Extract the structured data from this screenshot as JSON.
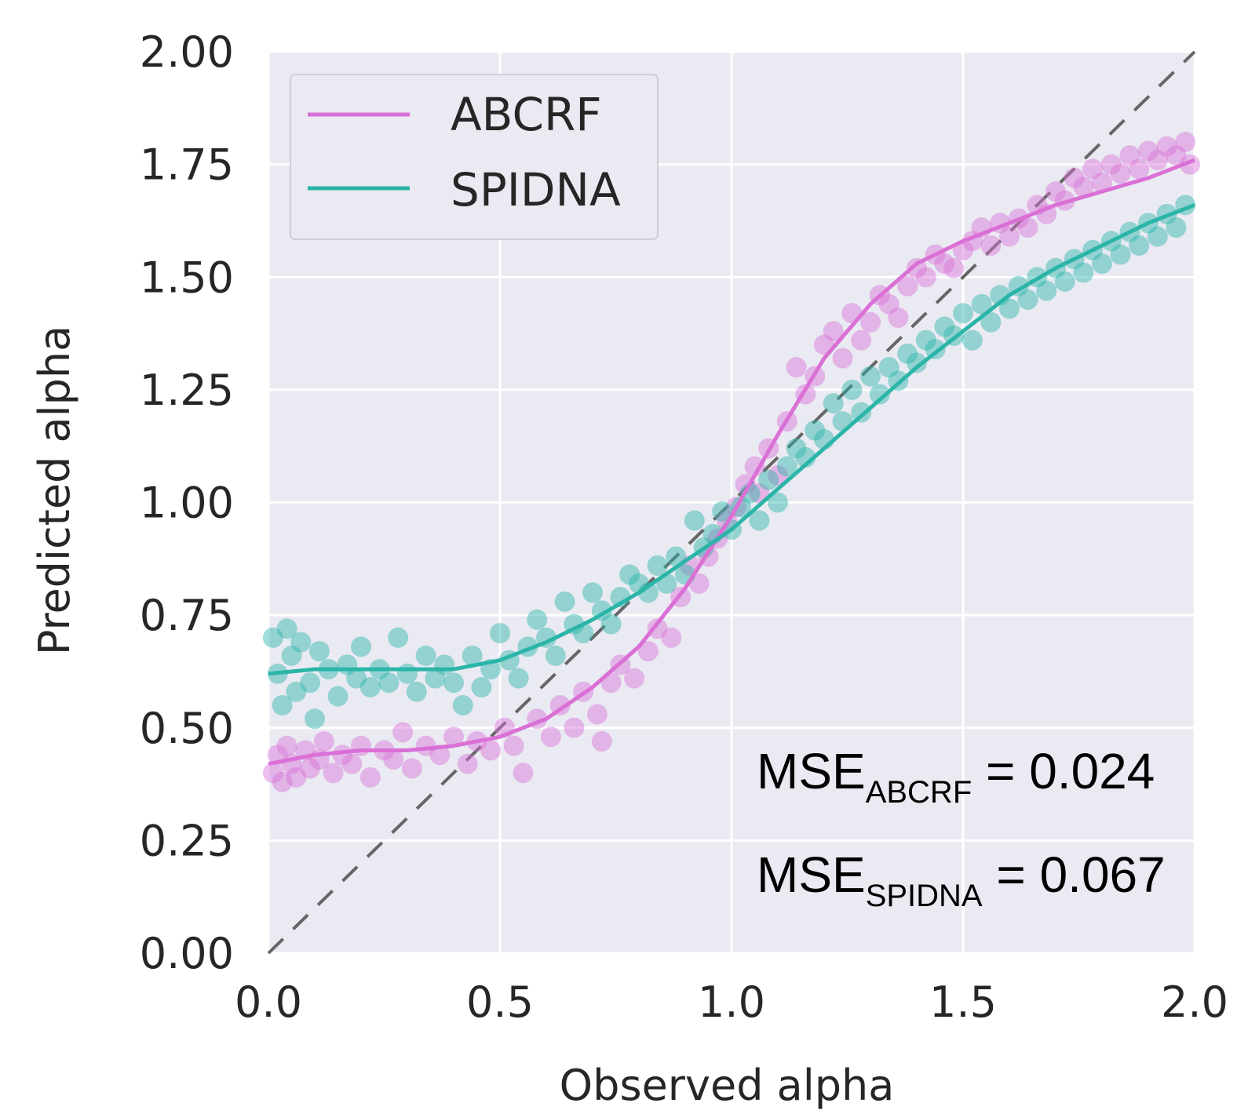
{
  "chart_data": {
    "type": "scatter",
    "xlabel": "Observed alpha",
    "ylabel": "Predicted alpha",
    "xlim": [
      0.0,
      2.0
    ],
    "ylim": [
      0.0,
      2.0
    ],
    "x_ticks": [
      "0.0",
      "0.5",
      "1.0",
      "1.5",
      "2.0"
    ],
    "y_ticks": [
      "0.00",
      "0.25",
      "0.50",
      "0.75",
      "1.00",
      "1.25",
      "1.50",
      "1.75",
      "2.00"
    ],
    "grid": true,
    "background": "#eaeaf2",
    "legend": {
      "position": "top-left"
    },
    "reference_line": {
      "style": "dashed",
      "color": "#666666",
      "x": [
        0.0,
        2.0
      ],
      "y": [
        0.0,
        2.0
      ]
    },
    "series": [
      {
        "name": "ABCRF",
        "color": "#da70d6",
        "points": [
          [
            0.01,
            0.4
          ],
          [
            0.02,
            0.44
          ],
          [
            0.03,
            0.38
          ],
          [
            0.04,
            0.46
          ],
          [
            0.05,
            0.42
          ],
          [
            0.06,
            0.39
          ],
          [
            0.08,
            0.45
          ],
          [
            0.09,
            0.41
          ],
          [
            0.11,
            0.43
          ],
          [
            0.12,
            0.47
          ],
          [
            0.14,
            0.4
          ],
          [
            0.16,
            0.44
          ],
          [
            0.18,
            0.42
          ],
          [
            0.2,
            0.46
          ],
          [
            0.22,
            0.39
          ],
          [
            0.25,
            0.45
          ],
          [
            0.27,
            0.43
          ],
          [
            0.29,
            0.49
          ],
          [
            0.31,
            0.41
          ],
          [
            0.34,
            0.46
          ],
          [
            0.37,
            0.44
          ],
          [
            0.4,
            0.48
          ],
          [
            0.43,
            0.42
          ],
          [
            0.45,
            0.47
          ],
          [
            0.48,
            0.45
          ],
          [
            0.51,
            0.5
          ],
          [
            0.53,
            0.46
          ],
          [
            0.55,
            0.4
          ],
          [
            0.58,
            0.52
          ],
          [
            0.61,
            0.48
          ],
          [
            0.63,
            0.55
          ],
          [
            0.66,
            0.5
          ],
          [
            0.68,
            0.58
          ],
          [
            0.71,
            0.53
          ],
          [
            0.72,
            0.47
          ],
          [
            0.74,
            0.6
          ],
          [
            0.76,
            0.64
          ],
          [
            0.79,
            0.61
          ],
          [
            0.82,
            0.67
          ],
          [
            0.84,
            0.72
          ],
          [
            0.87,
            0.7
          ],
          [
            0.89,
            0.79
          ],
          [
            0.91,
            0.86
          ],
          [
            0.93,
            0.82
          ],
          [
            0.95,
            0.88
          ],
          [
            0.97,
            0.92
          ],
          [
            0.99,
            0.96
          ],
          [
            1.01,
            0.99
          ],
          [
            1.03,
            1.04
          ],
          [
            1.05,
            1.08
          ],
          [
            1.06,
            1.02
          ],
          [
            1.08,
            1.12
          ],
          [
            1.1,
            1.06
          ],
          [
            1.12,
            1.18
          ],
          [
            1.14,
            1.3
          ],
          [
            1.16,
            1.24
          ],
          [
            1.18,
            1.28
          ],
          [
            1.2,
            1.35
          ],
          [
            1.22,
            1.38
          ],
          [
            1.24,
            1.32
          ],
          [
            1.26,
            1.42
          ],
          [
            1.28,
            1.36
          ],
          [
            1.3,
            1.4
          ],
          [
            1.32,
            1.46
          ],
          [
            1.34,
            1.44
          ],
          [
            1.36,
            1.41
          ],
          [
            1.38,
            1.48
          ],
          [
            1.4,
            1.52
          ],
          [
            1.42,
            1.5
          ],
          [
            1.44,
            1.55
          ],
          [
            1.46,
            1.53
          ],
          [
            1.48,
            1.52
          ],
          [
            1.5,
            1.56
          ],
          [
            1.52,
            1.58
          ],
          [
            1.54,
            1.61
          ],
          [
            1.56,
            1.57
          ],
          [
            1.58,
            1.62
          ],
          [
            1.6,
            1.59
          ],
          [
            1.62,
            1.63
          ],
          [
            1.64,
            1.61
          ],
          [
            1.66,
            1.66
          ],
          [
            1.68,
            1.64
          ],
          [
            1.7,
            1.69
          ],
          [
            1.72,
            1.67
          ],
          [
            1.74,
            1.72
          ],
          [
            1.76,
            1.7
          ],
          [
            1.78,
            1.74
          ],
          [
            1.8,
            1.71
          ],
          [
            1.82,
            1.75
          ],
          [
            1.84,
            1.73
          ],
          [
            1.86,
            1.77
          ],
          [
            1.88,
            1.74
          ],
          [
            1.9,
            1.78
          ],
          [
            1.92,
            1.76
          ],
          [
            1.94,
            1.79
          ],
          [
            1.96,
            1.77
          ],
          [
            1.98,
            1.8
          ],
          [
            1.99,
            1.75
          ]
        ],
        "curve": [
          [
            0.0,
            0.42
          ],
          [
            0.1,
            0.44
          ],
          [
            0.2,
            0.45
          ],
          [
            0.3,
            0.45
          ],
          [
            0.4,
            0.46
          ],
          [
            0.5,
            0.48
          ],
          [
            0.6,
            0.52
          ],
          [
            0.7,
            0.59
          ],
          [
            0.8,
            0.68
          ],
          [
            0.9,
            0.81
          ],
          [
            1.0,
            0.97
          ],
          [
            1.1,
            1.15
          ],
          [
            1.2,
            1.32
          ],
          [
            1.3,
            1.44
          ],
          [
            1.4,
            1.53
          ],
          [
            1.5,
            1.58
          ],
          [
            1.6,
            1.62
          ],
          [
            1.7,
            1.66
          ],
          [
            1.8,
            1.69
          ],
          [
            1.9,
            1.72
          ],
          [
            2.0,
            1.76
          ]
        ]
      },
      {
        "name": "SPIDNA",
        "color": "#2bb5a8",
        "points": [
          [
            0.01,
            0.7
          ],
          [
            0.02,
            0.62
          ],
          [
            0.03,
            0.55
          ],
          [
            0.04,
            0.72
          ],
          [
            0.05,
            0.66
          ],
          [
            0.06,
            0.58
          ],
          [
            0.07,
            0.69
          ],
          [
            0.09,
            0.6
          ],
          [
            0.1,
            0.52
          ],
          [
            0.11,
            0.67
          ],
          [
            0.13,
            0.63
          ],
          [
            0.15,
            0.57
          ],
          [
            0.17,
            0.64
          ],
          [
            0.19,
            0.61
          ],
          [
            0.2,
            0.68
          ],
          [
            0.22,
            0.59
          ],
          [
            0.24,
            0.63
          ],
          [
            0.26,
            0.6
          ],
          [
            0.28,
            0.7
          ],
          [
            0.3,
            0.62
          ],
          [
            0.32,
            0.58
          ],
          [
            0.34,
            0.66
          ],
          [
            0.36,
            0.61
          ],
          [
            0.38,
            0.64
          ],
          [
            0.4,
            0.6
          ],
          [
            0.42,
            0.55
          ],
          [
            0.44,
            0.66
          ],
          [
            0.46,
            0.59
          ],
          [
            0.48,
            0.63
          ],
          [
            0.5,
            0.71
          ],
          [
            0.52,
            0.65
          ],
          [
            0.54,
            0.61
          ],
          [
            0.56,
            0.68
          ],
          [
            0.58,
            0.74
          ],
          [
            0.6,
            0.7
          ],
          [
            0.62,
            0.66
          ],
          [
            0.64,
            0.78
          ],
          [
            0.66,
            0.73
          ],
          [
            0.68,
            0.71
          ],
          [
            0.7,
            0.8
          ],
          [
            0.72,
            0.76
          ],
          [
            0.74,
            0.73
          ],
          [
            0.76,
            0.79
          ],
          [
            0.78,
            0.84
          ],
          [
            0.8,
            0.82
          ],
          [
            0.82,
            0.8
          ],
          [
            0.84,
            0.86
          ],
          [
            0.86,
            0.82
          ],
          [
            0.88,
            0.88
          ],
          [
            0.9,
            0.84
          ],
          [
            0.92,
            0.96
          ],
          [
            0.94,
            0.9
          ],
          [
            0.96,
            0.93
          ],
          [
            0.98,
            0.98
          ],
          [
            1.0,
            0.94
          ],
          [
            1.02,
            0.99
          ],
          [
            1.04,
            1.02
          ],
          [
            1.06,
            0.96
          ],
          [
            1.08,
            1.05
          ],
          [
            1.1,
            1.0
          ],
          [
            1.12,
            1.08
          ],
          [
            1.14,
            1.12
          ],
          [
            1.16,
            1.1
          ],
          [
            1.18,
            1.16
          ],
          [
            1.2,
            1.14
          ],
          [
            1.22,
            1.22
          ],
          [
            1.24,
            1.18
          ],
          [
            1.26,
            1.25
          ],
          [
            1.28,
            1.2
          ],
          [
            1.3,
            1.28
          ],
          [
            1.32,
            1.24
          ],
          [
            1.34,
            1.3
          ],
          [
            1.36,
            1.27
          ],
          [
            1.38,
            1.33
          ],
          [
            1.4,
            1.31
          ],
          [
            1.42,
            1.36
          ],
          [
            1.44,
            1.34
          ],
          [
            1.46,
            1.39
          ],
          [
            1.48,
            1.37
          ],
          [
            1.5,
            1.42
          ],
          [
            1.52,
            1.36
          ],
          [
            1.54,
            1.44
          ],
          [
            1.56,
            1.4
          ],
          [
            1.58,
            1.46
          ],
          [
            1.6,
            1.43
          ],
          [
            1.62,
            1.48
          ],
          [
            1.64,
            1.45
          ],
          [
            1.66,
            1.5
          ],
          [
            1.68,
            1.47
          ],
          [
            1.7,
            1.52
          ],
          [
            1.72,
            1.49
          ],
          [
            1.74,
            1.54
          ],
          [
            1.76,
            1.51
          ],
          [
            1.78,
            1.56
          ],
          [
            1.8,
            1.53
          ],
          [
            1.82,
            1.58
          ],
          [
            1.84,
            1.55
          ],
          [
            1.86,
            1.6
          ],
          [
            1.88,
            1.57
          ],
          [
            1.9,
            1.62
          ],
          [
            1.92,
            1.59
          ],
          [
            1.94,
            1.64
          ],
          [
            1.96,
            1.61
          ],
          [
            1.98,
            1.66
          ]
        ],
        "curve": [
          [
            0.0,
            0.62
          ],
          [
            0.1,
            0.63
          ],
          [
            0.2,
            0.63
          ],
          [
            0.3,
            0.63
          ],
          [
            0.4,
            0.63
          ],
          [
            0.5,
            0.65
          ],
          [
            0.6,
            0.69
          ],
          [
            0.7,
            0.74
          ],
          [
            0.8,
            0.8
          ],
          [
            0.9,
            0.87
          ],
          [
            1.0,
            0.94
          ],
          [
            1.1,
            1.03
          ],
          [
            1.2,
            1.12
          ],
          [
            1.3,
            1.21
          ],
          [
            1.4,
            1.3
          ],
          [
            1.5,
            1.38
          ],
          [
            1.6,
            1.46
          ],
          [
            1.7,
            1.52
          ],
          [
            1.8,
            1.57
          ],
          [
            1.9,
            1.62
          ],
          [
            2.0,
            1.66
          ]
        ]
      }
    ],
    "annotations": [
      {
        "main": "MSE",
        "sub": "ABCRF",
        "rest": " = 0.024"
      },
      {
        "main": "MSE",
        "sub": "SPIDNA",
        "rest": " = 0.067"
      }
    ]
  }
}
